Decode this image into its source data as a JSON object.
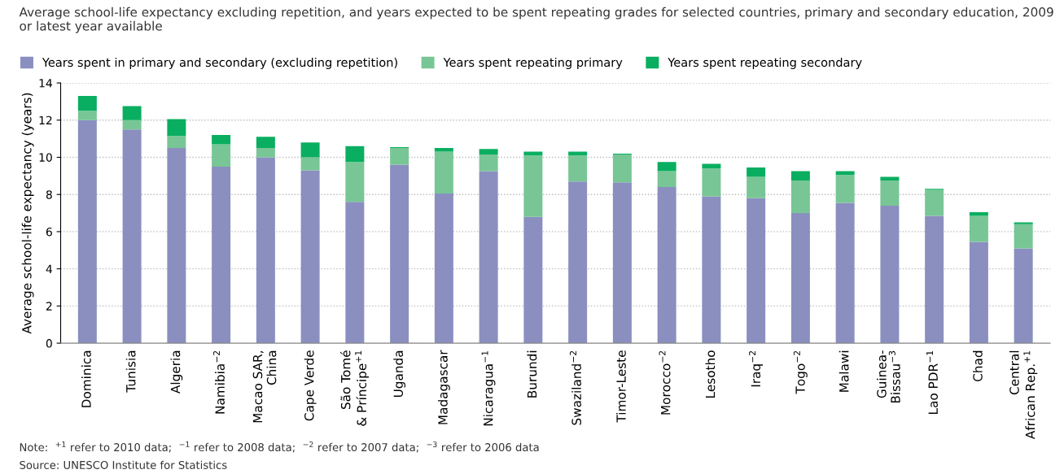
{
  "chart_data": {
    "type": "bar",
    "stacked": true,
    "title": "Average school-life expectancy excluding repetition, and years expected to be spent repeating grades for selected countries, primary and secondary education, 2009 or latest year available",
    "ylabel": "Average school-life expectancy (years)",
    "categories": [
      "Dominica",
      "Tunisia",
      "Algeria",
      "Namibia$^{−2}$",
      "Macao SAR,\nChina",
      "Cape Verde",
      "São Tomé\n& Príncipe$^{+1}$",
      "Uganda",
      "Madagascar",
      "Nicaragua$^{−1}$",
      "Burundi",
      "Swaziland$^{−2}$",
      "Timor-Leste",
      "Morocco$^{−2}$",
      "Lesotho",
      "Iraq$^{−2}$",
      "Togo$^{−2}$",
      "Malawi",
      "Guinea-\nBissau$^{−3}$",
      "Lao PDR$^{−1}$",
      "Chad",
      "Central\nAfrican Rep.$^{+1}$"
    ],
    "series": [
      {
        "name": "Years spent in primary and secondary (excluding repetition)",
        "color": "#8a8fc0",
        "values": [
          12.0,
          11.5,
          10.5,
          9.5,
          10.0,
          9.3,
          7.6,
          9.6,
          8.05,
          9.25,
          6.8,
          8.7,
          8.65,
          8.4,
          7.9,
          7.8,
          7.0,
          7.55,
          7.4,
          6.85,
          5.45,
          5.1
        ]
      },
      {
        "name": "Years spent repeating primary",
        "color": "#78c695",
        "values": [
          0.5,
          0.5,
          0.65,
          1.2,
          0.5,
          0.7,
          2.15,
          0.9,
          2.25,
          0.9,
          3.3,
          1.4,
          1.5,
          0.85,
          1.5,
          1.15,
          1.75,
          1.5,
          1.35,
          1.4,
          1.4,
          1.3
        ]
      },
      {
        "name": "Years spent repeating secondary",
        "color": "#0aae60",
        "values": [
          0.8,
          0.75,
          0.9,
          0.5,
          0.6,
          0.8,
          0.85,
          0.05,
          0.2,
          0.3,
          0.2,
          0.2,
          0.05,
          0.5,
          0.25,
          0.5,
          0.5,
          0.2,
          0.2,
          0.05,
          0.2,
          0.1
        ]
      }
    ],
    "ylim": [
      0,
      14
    ],
    "yticks": [
      0,
      2,
      4,
      6,
      8,
      10,
      12,
      14
    ],
    "grid": "y",
    "legend": "top left",
    "annotations": [
      "Note:  $^{+1}$ refer to 2010 data;  $^{−1}$ refer to 2008 data;  $^{−2}$ refer to 2007 data;  $^{−3}$ refer to 2006 data",
      "Source: UNESCO Institute for Statistics"
    ]
  }
}
